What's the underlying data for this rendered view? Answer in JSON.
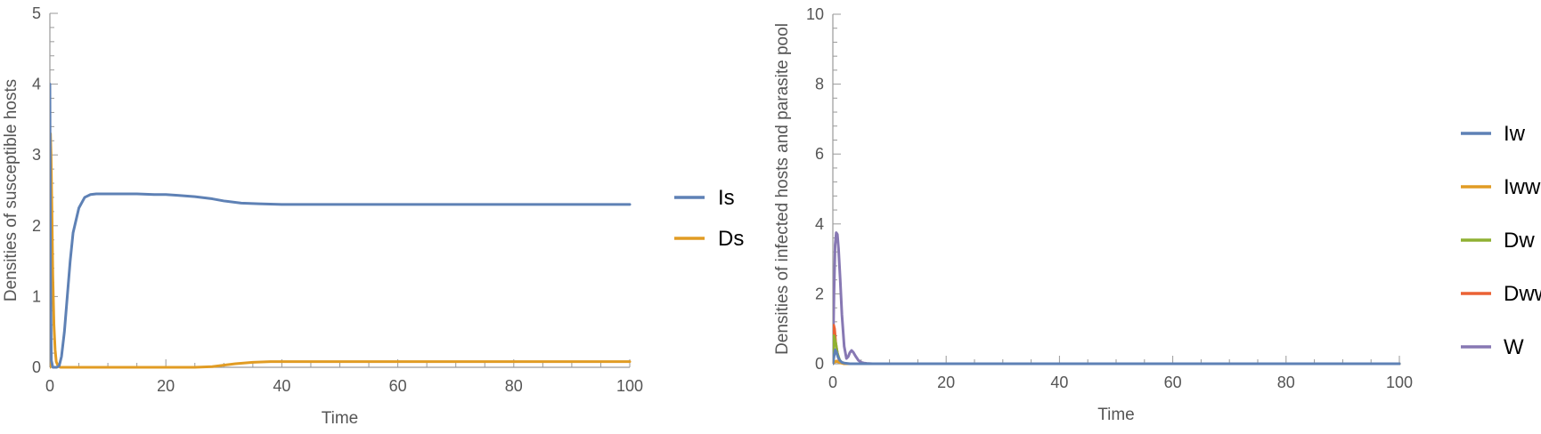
{
  "chart_data": [
    {
      "type": "line",
      "xlabel": "Time",
      "ylabel": "Densities of susceptible hosts",
      "xlim": [
        0,
        100
      ],
      "ylim": [
        0,
        5
      ],
      "xticks": [
        0,
        20,
        40,
        60,
        80,
        100
      ],
      "yticks": [
        0,
        1,
        2,
        3,
        4,
        5
      ],
      "grid": false,
      "legend_position": "right",
      "series": [
        {
          "name": "Is",
          "color": "#5e81b5",
          "x": [
            0,
            0.1,
            0.25,
            0.5,
            0.8,
            1.2,
            1.6,
            2,
            2.5,
            3,
            3.5,
            4,
            5,
            6,
            7,
            8,
            9,
            10,
            12,
            15,
            18,
            20,
            22,
            25,
            28,
            30,
            33,
            36,
            40,
            45,
            50,
            60,
            70,
            80,
            90,
            100
          ],
          "y": [
            4.0,
            1.4,
            0.1,
            0.0,
            0.0,
            0.0,
            0.02,
            0.15,
            0.5,
            1.0,
            1.5,
            1.9,
            2.25,
            2.4,
            2.44,
            2.45,
            2.45,
            2.45,
            2.45,
            2.45,
            2.44,
            2.44,
            2.43,
            2.41,
            2.38,
            2.35,
            2.32,
            2.31,
            2.3,
            2.3,
            2.3,
            2.3,
            2.3,
            2.3,
            2.3,
            2.3
          ]
        },
        {
          "name": "Ds",
          "color": "#e19c24",
          "x": [
            0,
            0.1,
            0.2,
            0.35,
            0.5,
            0.7,
            0.9,
            1.1,
            1.4,
            1.8,
            2.5,
            5,
            10,
            15,
            20,
            25,
            28,
            30,
            32,
            35,
            38,
            40,
            45,
            50,
            60,
            70,
            80,
            90,
            100
          ],
          "y": [
            0.0,
            3.3,
            3.0,
            2.2,
            1.3,
            0.6,
            0.25,
            0.08,
            0.02,
            0.0,
            0.0,
            0.0,
            0.0,
            0.0,
            0.0,
            0.0,
            0.01,
            0.03,
            0.05,
            0.07,
            0.08,
            0.08,
            0.08,
            0.08,
            0.08,
            0.08,
            0.08,
            0.08,
            0.08
          ]
        }
      ]
    },
    {
      "type": "line",
      "xlabel": "Time",
      "ylabel": "Densities of infected hosts and parasite pool",
      "xlim": [
        0,
        100
      ],
      "ylim": [
        0,
        10
      ],
      "xticks": [
        0,
        20,
        40,
        60,
        80,
        100
      ],
      "yticks": [
        0,
        2,
        4,
        6,
        8,
        10
      ],
      "grid": false,
      "legend_position": "right",
      "series": [
        {
          "name": "Iw",
          "color": "#5e81b5",
          "x": [
            0,
            0.2,
            0.4,
            0.6,
            0.9,
            1.2,
            1.6,
            2,
            3,
            5,
            10,
            100
          ],
          "y": [
            0.0,
            0.2,
            0.4,
            0.35,
            0.2,
            0.1,
            0.04,
            0.02,
            0.0,
            0.0,
            0.0,
            0.0
          ]
        },
        {
          "name": "Iww",
          "color": "#e19c24",
          "x": [
            0,
            0.3,
            0.6,
            1,
            1.5,
            2,
            3,
            5,
            100
          ],
          "y": [
            0.0,
            0.05,
            0.08,
            0.05,
            0.02,
            0.0,
            0.0,
            0.0,
            0.0
          ]
        },
        {
          "name": "Dw",
          "color": "#8fb032",
          "x": [
            0,
            0.2,
            0.5,
            0.8,
            1.2,
            1.6,
            2,
            3,
            100
          ],
          "y": [
            0.0,
            0.8,
            0.6,
            0.3,
            0.1,
            0.03,
            0.0,
            0.0,
            0.0
          ]
        },
        {
          "name": "Dww",
          "color": "#eb6235",
          "x": [
            0,
            0.15,
            0.3,
            0.5,
            0.8,
            1.1,
            1.5,
            2,
            3,
            100
          ],
          "y": [
            0.0,
            1.1,
            1.0,
            0.6,
            0.3,
            0.1,
            0.03,
            0.0,
            0.0,
            0.0
          ]
        },
        {
          "name": "W",
          "color": "#8778b3",
          "x": [
            0,
            0.2,
            0.4,
            0.6,
            0.8,
            1.0,
            1.3,
            1.6,
            2.0,
            2.4,
            2.7,
            3.0,
            3.3,
            3.6,
            4.0,
            4.5,
            5.0,
            5.5,
            6.0,
            7,
            8,
            10,
            20,
            40,
            60,
            80,
            100
          ],
          "y": [
            0.0,
            2.0,
            3.4,
            3.75,
            3.7,
            3.3,
            2.4,
            1.4,
            0.5,
            0.15,
            0.2,
            0.32,
            0.38,
            0.33,
            0.22,
            0.1,
            0.04,
            0.02,
            0.01,
            0.0,
            0.0,
            0.0,
            0.0,
            0.0,
            0.0,
            0.0,
            0.0
          ]
        }
      ]
    }
  ]
}
